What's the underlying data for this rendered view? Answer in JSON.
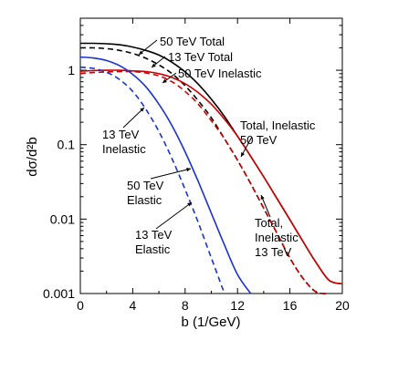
{
  "chart_data": {
    "type": "line",
    "xlabel": "b  (1/GeV)",
    "ylabel": "dσ/d²b",
    "xlim": [
      0,
      20
    ],
    "ylim": [
      0.001,
      5
    ],
    "yscale": "log",
    "grid": false,
    "x_ticks": [
      0,
      4,
      8,
      12,
      16,
      20
    ],
    "x_tick_labels": [
      "0",
      "4",
      "8",
      "12",
      "16",
      "20"
    ],
    "y_ticks": [
      0.001,
      0.01,
      0.1,
      1
    ],
    "y_tick_labels": [
      "0.001",
      "0.01",
      "0.1",
      "1"
    ],
    "series": [
      {
        "name": "50 TeV Total",
        "color": "#000000",
        "dash": "solid",
        "x": [
          0,
          1,
          2,
          3,
          4,
          5,
          6,
          7,
          8,
          9,
          10,
          11,
          12,
          13,
          14,
          15,
          16,
          17,
          18,
          19,
          20
        ],
        "y": [
          2.3,
          2.3,
          2.27,
          2.2,
          2.05,
          1.85,
          1.6,
          1.28,
          0.95,
          0.65,
          0.41,
          0.24,
          0.13,
          0.07,
          0.037,
          0.019,
          0.0098,
          0.005,
          0.0026,
          0.0015,
          0.00135
        ]
      },
      {
        "name": "13 TeV Total",
        "color": "#000000",
        "dash": "dashed",
        "x": [
          0,
          1,
          2,
          3,
          4,
          5,
          6,
          7,
          8,
          9,
          10,
          11,
          12,
          13,
          14,
          15,
          16,
          17,
          18,
          19
        ],
        "y": [
          2.0,
          2.0,
          1.95,
          1.85,
          1.68,
          1.45,
          1.18,
          0.9,
          0.62,
          0.39,
          0.23,
          0.12,
          0.062,
          0.03,
          0.014,
          0.0065,
          0.003,
          0.0016,
          0.00105,
          0.001
        ]
      },
      {
        "name": "50 TeV Inelastic",
        "color": "#cc0000",
        "dash": "solid",
        "x": [
          0,
          1,
          2,
          3,
          4,
          5,
          6,
          7,
          8,
          9,
          10,
          11,
          12,
          13,
          14,
          15,
          16,
          17,
          18,
          19,
          20
        ],
        "y": [
          0.97,
          0.99,
          1.0,
          1.0,
          0.98,
          0.96,
          0.9,
          0.8,
          0.66,
          0.5,
          0.35,
          0.22,
          0.13,
          0.07,
          0.037,
          0.019,
          0.0098,
          0.005,
          0.0026,
          0.0015,
          0.00135
        ]
      },
      {
        "name": "13 TeV Inelastic",
        "color": "#cc0000",
        "dash": "dashed",
        "x": [
          0,
          1,
          2,
          3,
          4,
          5,
          6,
          7,
          8,
          9,
          10,
          11,
          12,
          13,
          14,
          15,
          16,
          17,
          18,
          19
        ],
        "y": [
          0.91,
          0.93,
          0.95,
          0.96,
          0.96,
          0.92,
          0.84,
          0.7,
          0.52,
          0.35,
          0.21,
          0.12,
          0.062,
          0.03,
          0.014,
          0.0065,
          0.003,
          0.0016,
          0.00105,
          0.001
        ]
      },
      {
        "name": "50 TeV Elastic",
        "color": "#1a33cc",
        "dash": "solid",
        "x": [
          0,
          1,
          2,
          3,
          4,
          5,
          6,
          7,
          8,
          9,
          10,
          11,
          12,
          13
        ],
        "y": [
          1.5,
          1.46,
          1.35,
          1.15,
          0.88,
          0.6,
          0.35,
          0.18,
          0.08,
          0.032,
          0.012,
          0.0045,
          0.0018,
          0.001
        ]
      },
      {
        "name": "13 TeV Elastic",
        "color": "#1a33cc",
        "dash": "dashed",
        "x": [
          0,
          1,
          2,
          3,
          4,
          5,
          6,
          7,
          8,
          9,
          10,
          11
        ],
        "y": [
          1.1,
          1.06,
          0.94,
          0.75,
          0.52,
          0.3,
          0.15,
          0.065,
          0.025,
          0.009,
          0.003,
          0.001
        ]
      }
    ],
    "annotations": [
      {
        "lines": [
          "50 TeV  Total"
        ]
      },
      {
        "lines": [
          "13 TeV  Total"
        ]
      },
      {
        "lines": [
          "50 TeV  Inelastic"
        ]
      },
      {
        "lines": [
          "13 TeV",
          "Inelastic"
        ]
      },
      {
        "lines": [
          "50 TeV",
          "Elastic"
        ]
      },
      {
        "lines": [
          "13 TeV",
          "Elastic"
        ]
      },
      {
        "lines": [
          "Total, Inelastic",
          "50 TeV"
        ]
      },
      {
        "lines": [
          "Total,",
          "Inelastic",
          "13 TeV"
        ]
      }
    ]
  }
}
